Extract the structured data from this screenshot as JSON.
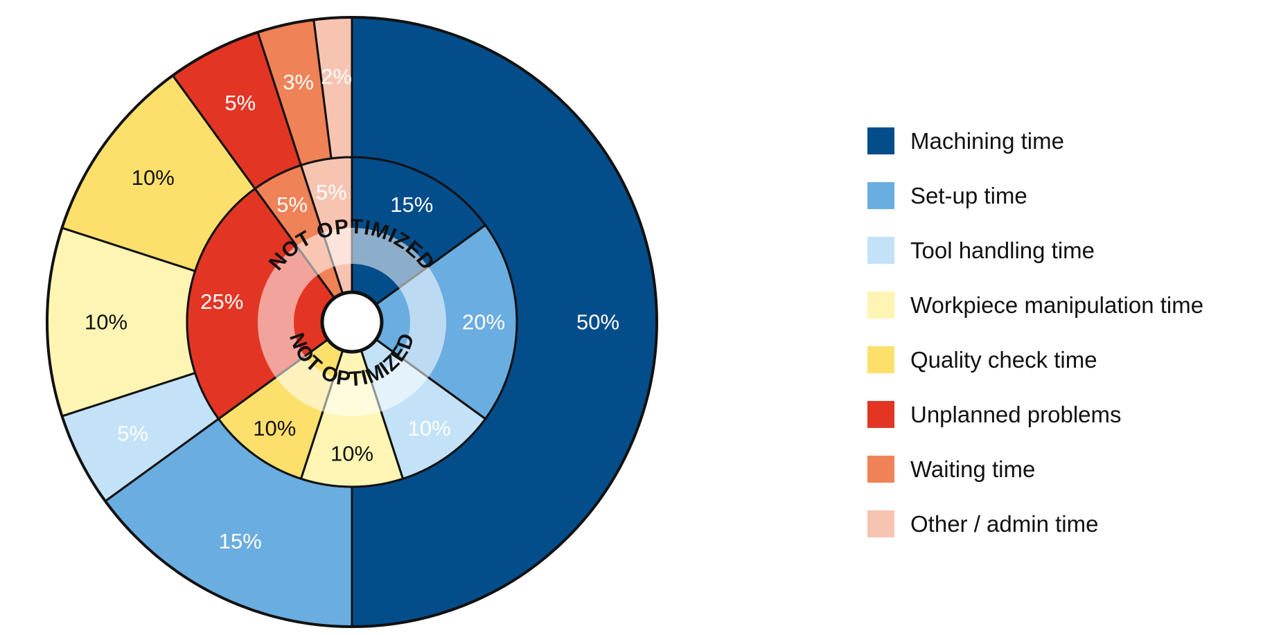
{
  "chart_data": {
    "type": "pie",
    "subtype": "nested-donut",
    "legend_position": "right",
    "categories": [
      "Machining time",
      "Set-up time",
      "Tool handling time",
      "Workpiece manipulation time",
      "Quality check time",
      "Unplanned problems",
      "Waiting time",
      "Other / admin time"
    ],
    "colors": {
      "Machining time": "#034d8b",
      "Set-up time": "#6aade0",
      "Tool handling time": "#c3e2f8",
      "Workpiece manipulation time": "#fef5b4",
      "Quality check time": "#fde06c",
      "Unplanned problems": "#e33524",
      "Waiting time": "#ef8256",
      "Other / admin time": "#f8c4b2"
    },
    "label_colors": {
      "Machining time": "#ffffff",
      "Set-up time": "#ffffff",
      "Tool handling time": "#ffffff",
      "Workpiece manipulation time": "#111111",
      "Quality check time": "#111111",
      "Unplanned problems": "#ffffff",
      "Waiting time": "#ffffff",
      "Other / admin time": "#ffffff"
    },
    "series": [
      {
        "ring": "inner",
        "values": [
          15,
          20,
          10,
          10,
          10,
          25,
          5,
          5
        ],
        "labels": [
          "15%",
          "20%",
          "10%",
          "10%",
          "10%",
          "25%",
          "5%",
          "5%"
        ]
      },
      {
        "ring": "outer",
        "values": [
          50,
          15,
          5,
          10,
          10,
          5,
          3,
          2
        ],
        "labels": [
          "50%",
          "15%",
          "5%",
          "10%",
          "10%",
          "5%",
          "3%",
          "2%"
        ]
      }
    ],
    "annotations": [
      "NOT OPTIMIZED",
      "NOT OPTIMIZED"
    ]
  }
}
